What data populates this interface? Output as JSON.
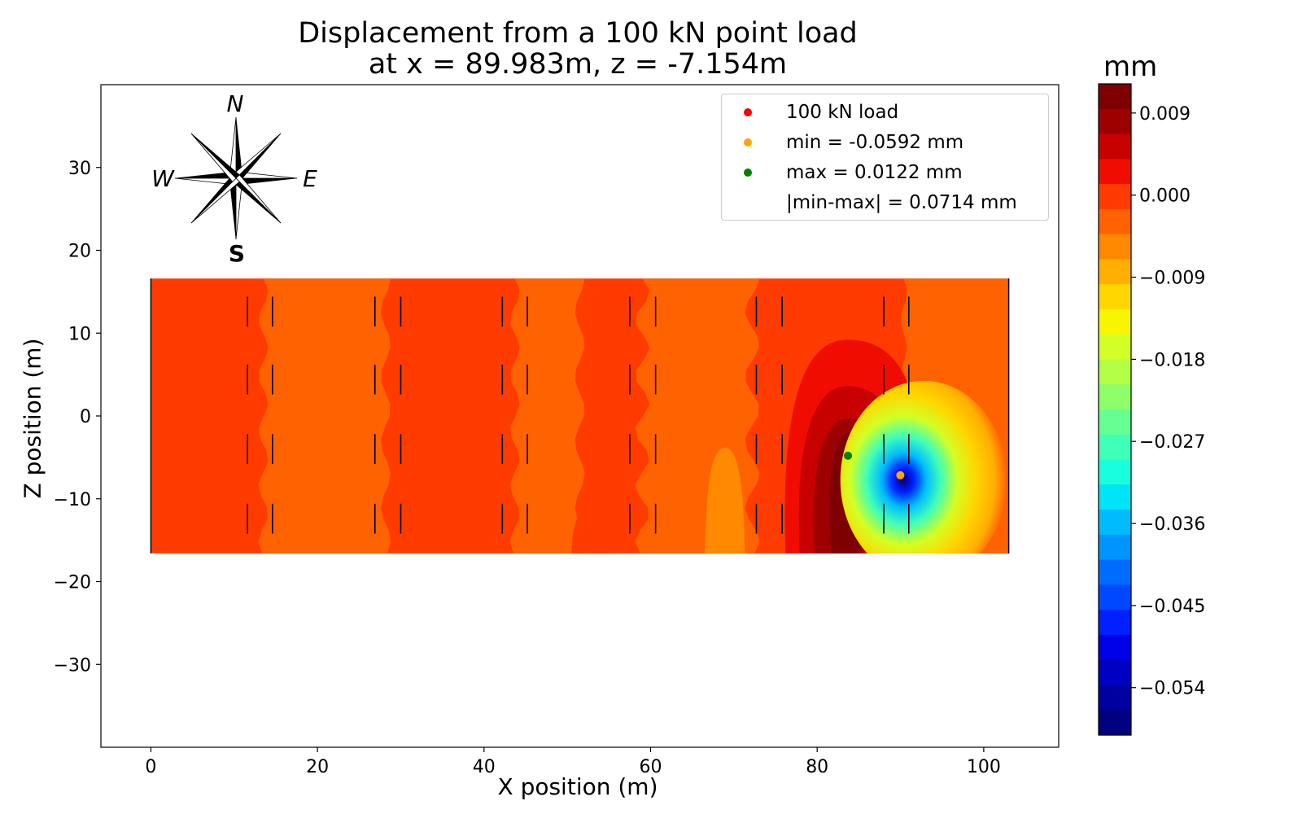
{
  "chart_data": {
    "type": "heatmap",
    "title_lines": [
      "Displacement from a 100 kN point load",
      "at x = 89.983m, z = -7.154m"
    ],
    "xlabel": "X position (m)",
    "ylabel": "Z position (m)",
    "xlim": [
      -6,
      109
    ],
    "ylim": [
      -40,
      40
    ],
    "x_ticks": [
      "0",
      "20",
      "40",
      "60",
      "80",
      "100"
    ],
    "y_ticks": [
      "30",
      "20",
      "10",
      "0",
      "−10",
      "−20",
      "−30"
    ],
    "domain": {
      "x": [
        0,
        103
      ],
      "z": [
        -16.6,
        16.6
      ]
    },
    "point_load": {
      "x": 89.983,
      "z": -7.154
    },
    "min_point": {
      "x": 89.983,
      "z": -7.154,
      "value": -0.0592
    },
    "max_point": {
      "x": 83.7,
      "z": -4.8,
      "value": 0.0122
    },
    "support_columns_x": [
      11.6,
      14.6,
      26.9,
      30.0,
      42.2,
      45.2,
      57.5,
      60.6,
      72.7,
      75.8,
      88.0,
      91.0
    ],
    "support_rows_z": [
      12.6,
      4.4,
      -4.0,
      -12.4
    ],
    "colorbar": {
      "unit": "mm",
      "range": [
        -0.0592,
        0.0122
      ],
      "ticks": [
        "0.009",
        "0.000",
        "−0.009",
        "−0.018",
        "−0.027",
        "−0.036",
        "−0.045",
        "−0.054"
      ],
      "tick_values": [
        0.009,
        0.0,
        -0.009,
        -0.018,
        -0.027,
        -0.036,
        -0.045,
        -0.054
      ],
      "colors": [
        "#7f0000",
        "#9e0000",
        "#c70000",
        "#f00c00",
        "#ff3b00",
        "#ff6200",
        "#ff8900",
        "#ffaf00",
        "#ffd600",
        "#f8f500",
        "#d2ff25",
        "#b2ff45",
        "#8cff6b",
        "#66ff91",
        "#40ffb7",
        "#19ffde",
        "#00e4f8",
        "#00bcff",
        "#0094ff",
        "#006cff",
        "#0048ff",
        "#0020ff",
        "#0000e8",
        "#0000c4",
        "#0000a0",
        "#000080"
      ]
    },
    "field_colors": {
      "base": "#ff3b00",
      "band": "#ff6200",
      "light": "#ff8900",
      "max_outer": "#f00c00",
      "max_mid": "#c70000",
      "max_inner": "#9e0000",
      "max_core": "#7f0000"
    },
    "compass": {
      "N": "N",
      "E": "E",
      "S": "S",
      "W": "W"
    },
    "legend": [
      {
        "label": "100 kN load",
        "color": "#ff0000"
      },
      {
        "label": "min = -0.0592 mm",
        "color": "#ffa500"
      },
      {
        "label": "max = 0.0122 mm",
        "color": "#008000"
      },
      {
        "label": "|min-max| = 0.0714 mm",
        "color": ""
      }
    ]
  }
}
